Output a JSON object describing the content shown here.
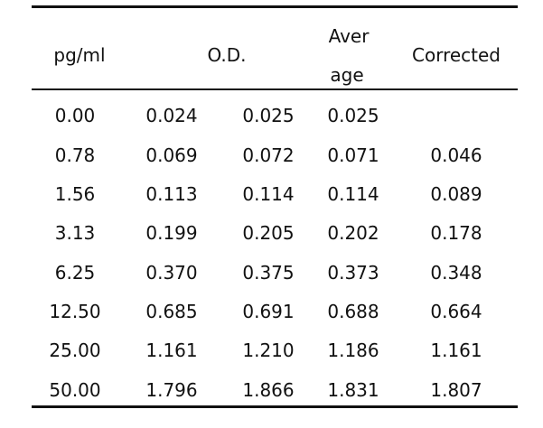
{
  "header": {
    "col1": "pg/ml",
    "col2": "O.D.",
    "col3_line1": "Aver",
    "col3_line2": "age",
    "col4": "Corrected"
  },
  "rows": [
    [
      "0.00",
      "0.024",
      "0.025",
      "0.025",
      ""
    ],
    [
      "0.78",
      "0.069",
      "0.072",
      "0.071",
      "0.046"
    ],
    [
      "1.56",
      "0.113",
      "0.114",
      "0.114",
      "0.089"
    ],
    [
      "3.13",
      "0.199",
      "0.205",
      "0.202",
      "0.178"
    ],
    [
      "6.25",
      "0.370",
      "0.375",
      "0.373",
      "0.348"
    ],
    [
      "12.50",
      "0.685",
      "0.691",
      "0.688",
      "0.664"
    ],
    [
      "25.00",
      "1.161",
      "1.210",
      "1.186",
      "1.161"
    ],
    [
      "50.00",
      "1.796",
      "1.866",
      "1.831",
      "1.807"
    ]
  ]
}
